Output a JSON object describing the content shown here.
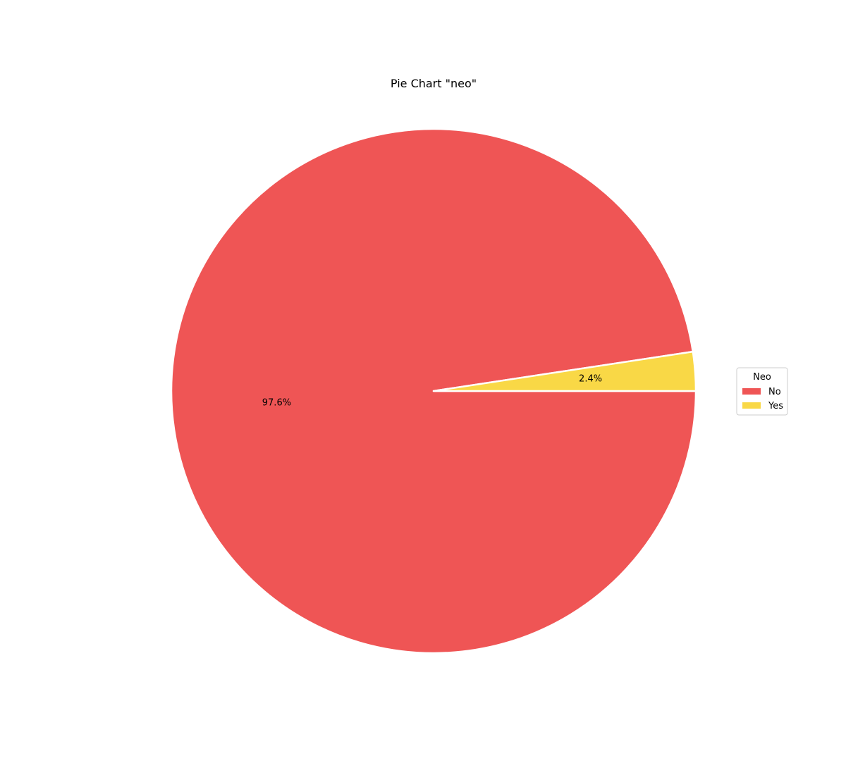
{
  "chart_data": {
    "type": "pie",
    "title": "Pie Chart \"neo\"",
    "categories": [
      "No",
      "Yes"
    ],
    "values": [
      97.6,
      2.4
    ],
    "value_labels": [
      "97.6%",
      "2.4%"
    ],
    "colors": [
      "#ef5555",
      "#f9d846"
    ],
    "edge_color": "#ffffff",
    "start_angle_deg": 0,
    "direction": "clockwise",
    "legend": {
      "title": "Neo",
      "placement": "right",
      "entries": [
        "No",
        "Yes"
      ]
    }
  }
}
